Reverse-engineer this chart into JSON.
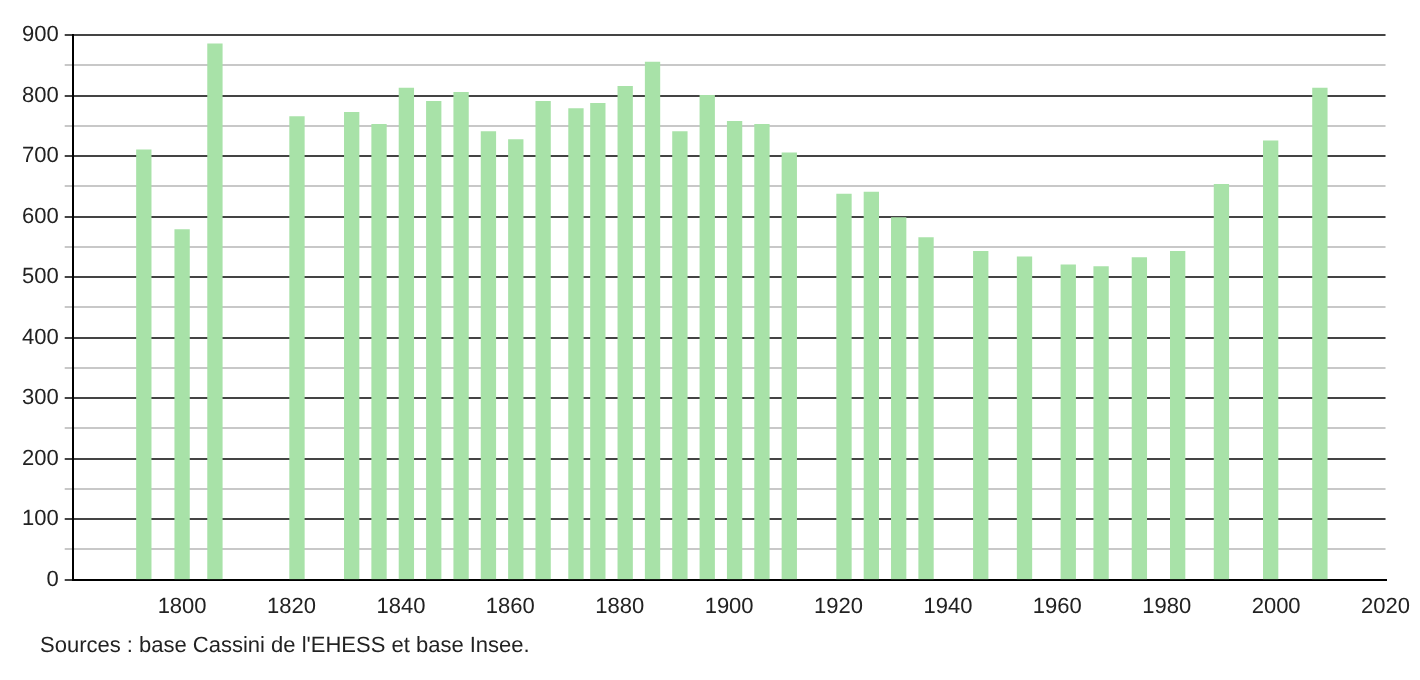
{
  "chart_data": {
    "type": "bar",
    "x": [
      1793,
      1800,
      1806,
      1821,
      1831,
      1836,
      1841,
      1846,
      1851,
      1856,
      1861,
      1866,
      1872,
      1876,
      1881,
      1886,
      1891,
      1896,
      1901,
      1906,
      1911,
      1921,
      1926,
      1931,
      1936,
      1946,
      1954,
      1962,
      1968,
      1975,
      1982,
      1990,
      1999,
      2008
    ],
    "values": [
      710,
      578,
      885,
      765,
      772,
      752,
      812,
      790,
      805,
      740,
      727,
      790,
      778,
      787,
      815,
      855,
      740,
      800,
      757,
      752,
      705,
      637,
      640,
      598,
      565,
      542,
      533,
      520,
      517,
      532,
      542,
      653,
      725,
      812
    ],
    "color": "#a8e2a8",
    "xlim": [
      1780,
      2020
    ],
    "xticks": [
      1800,
      1820,
      1840,
      1860,
      1880,
      1900,
      1920,
      1940,
      1960,
      1980,
      2000,
      2020
    ],
    "ylim": [
      0,
      900
    ],
    "yticks": [
      0,
      {
        "value": 50,
        "label": null
      },
      100,
      {
        "value": 150,
        "label": null
      },
      200,
      {
        "value": 250,
        "label": null
      },
      300,
      {
        "value": 350,
        "label": null
      },
      400,
      {
        "value": 450,
        "label": null
      },
      500,
      {
        "value": 550,
        "label": null
      },
      600,
      {
        "value": 650,
        "label": null
      },
      700,
      {
        "value": 750,
        "label": null
      },
      800,
      {
        "value": 850,
        "label": null
      },
      900
    ],
    "grid": "y",
    "legend": false,
    "annotations": [
      "Sources : base Cassini de l'EHESS et base Insee."
    ]
  }
}
